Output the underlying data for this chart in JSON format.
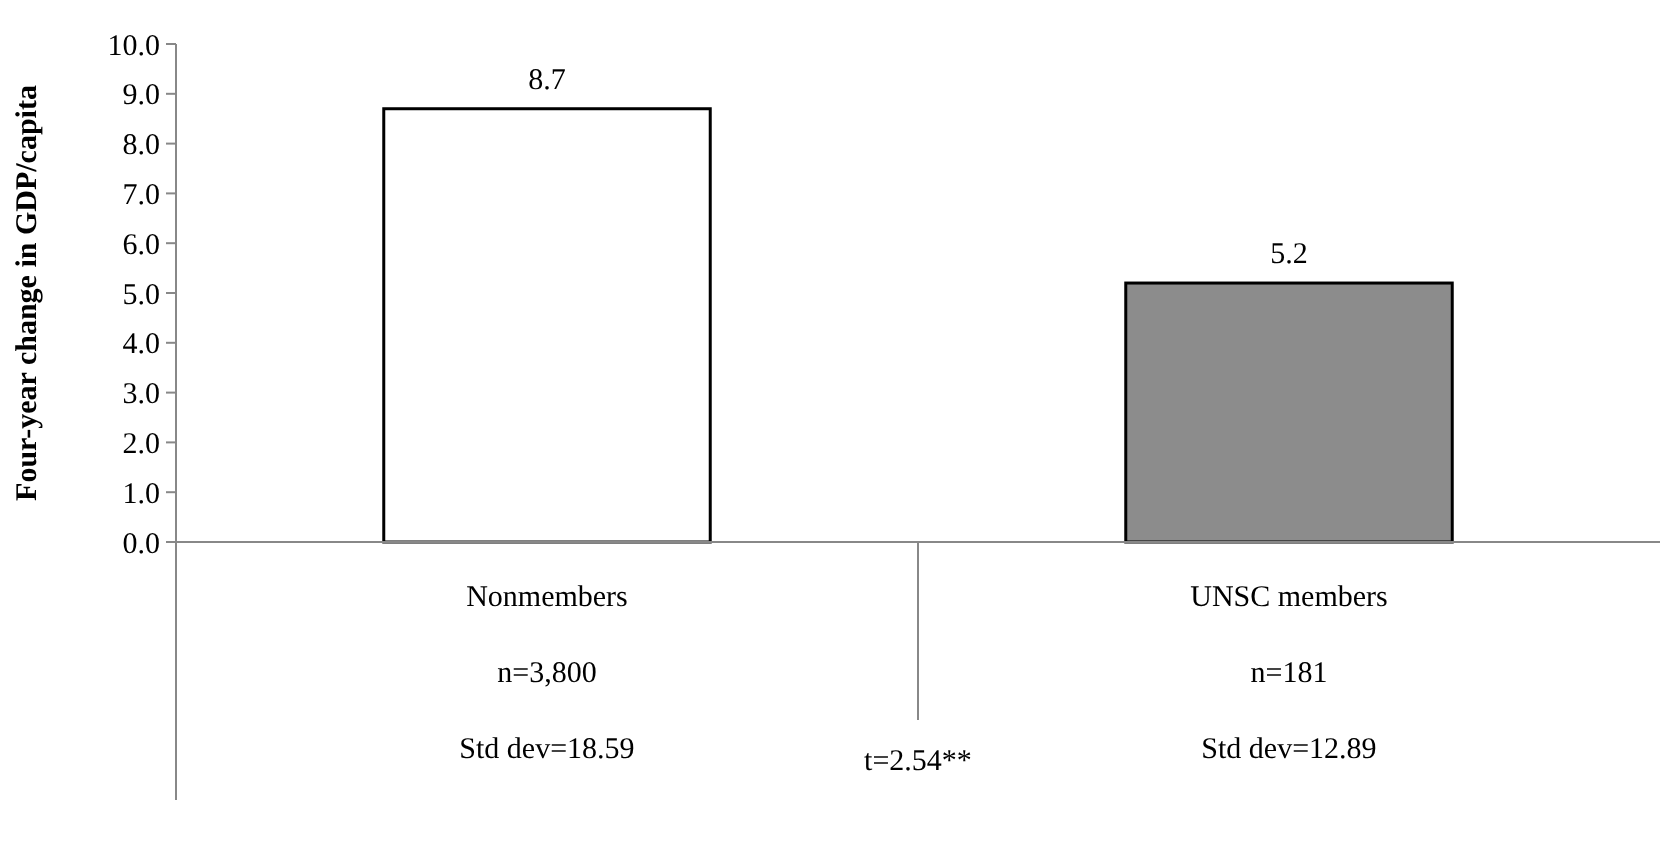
{
  "chart_data": {
    "type": "bar",
    "ylabel": "Four-year change in GDP/capita",
    "categories": [
      "Nonmembers\nn=3,800\nStd dev=18.59",
      "UNSC members\nn=181\nStd dev=12.89"
    ],
    "values": [
      8.7,
      5.2
    ],
    "colors": [
      "#ffffff",
      "#8c8c8c"
    ],
    "ylim": [
      0,
      10
    ],
    "yticks": [
      {
        "value": 0,
        "label": "0.0"
      },
      {
        "value": 1,
        "label": "1.0"
      },
      {
        "value": 2,
        "label": "2.0"
      },
      {
        "value": 3,
        "label": "3.0"
      },
      {
        "value": 4,
        "label": "4.0"
      },
      {
        "value": 5,
        "label": "5.0"
      },
      {
        "value": 6,
        "label": "6.0"
      },
      {
        "value": 7,
        "label": "7.0"
      },
      {
        "value": 8,
        "label": "8.0"
      },
      {
        "value": 9,
        "label": "9.0"
      },
      {
        "value": 10,
        "label": "10.0"
      }
    ],
    "data_labels": true,
    "grid": false,
    "annotations": [
      "t=2.54**"
    ]
  }
}
